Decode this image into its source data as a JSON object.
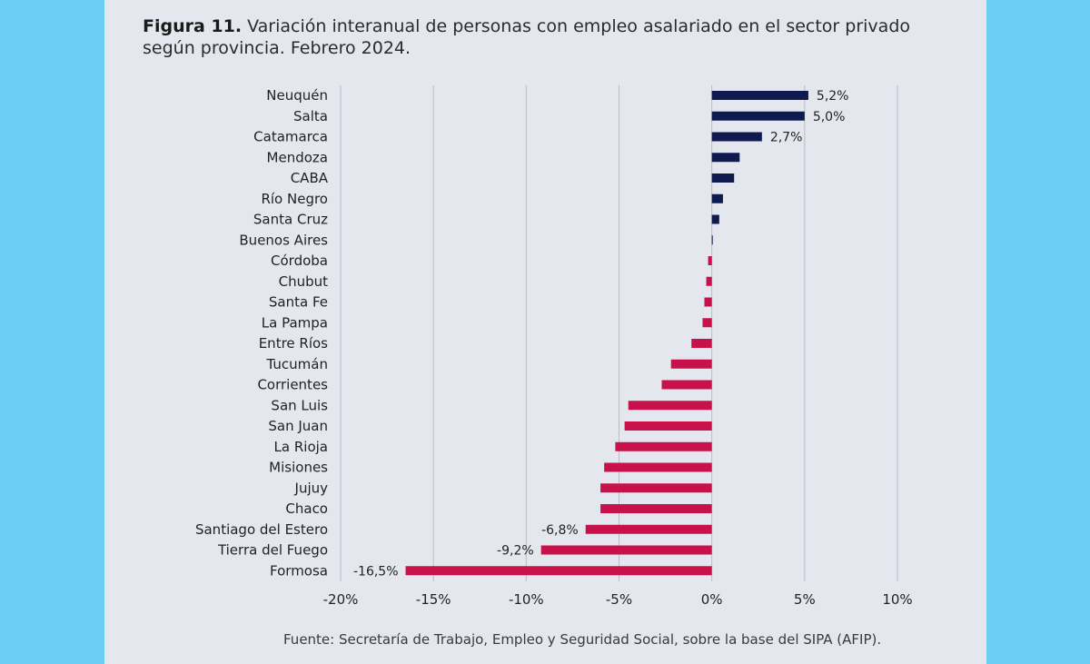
{
  "figure": {
    "label": "Figura 11.",
    "title": "Variación interanual de personas con empleo asalariado en el sector privado según provincia. Febrero 2024."
  },
  "source": "Fuente: Secretaría de Trabajo, Empleo y Seguridad Social, sobre la base del SIPA (AFIP).",
  "colors": {
    "positive": "#0f1a4f",
    "negative": "#c8104b",
    "grid": "#b9bbc4",
    "background": "#e5e7ef",
    "frame": "#6ccdf4"
  },
  "chart_data": {
    "type": "bar",
    "orientation": "horizontal",
    "categories": [
      "Neuquén",
      "Salta",
      "Catamarca",
      "Mendoza",
      "CABA",
      "Río Negro",
      "Santa Cruz",
      "Buenos Aires",
      "Córdoba",
      "Chubut",
      "Santa Fe",
      "La Pampa",
      "Entre Ríos",
      "Tucumán",
      "Corrientes",
      "San Luis",
      "San Juan",
      "La Rioja",
      "Misiones",
      "Jujuy",
      "Chaco",
      "Santiago del Estero",
      "Tierra del Fuego",
      "Formosa"
    ],
    "values": [
      5.2,
      5.0,
      2.7,
      1.5,
      1.2,
      0.6,
      0.4,
      0.05,
      -0.2,
      -0.3,
      -0.4,
      -0.5,
      -1.1,
      -2.2,
      -2.7,
      -4.5,
      -4.7,
      -5.2,
      -5.8,
      -6.0,
      -6.0,
      -6.8,
      -9.2,
      -16.5
    ],
    "data_labels": [
      "5,2%",
      "5,0%",
      "2,7%",
      "",
      "",
      "",
      "",
      "",
      "",
      "",
      "",
      "",
      "",
      "",
      "",
      "",
      "",
      "",
      "",
      "",
      "",
      "-6,8%",
      "-9,2%",
      "-16,5%"
    ],
    "xlim": [
      -20,
      10
    ],
    "xticks": [
      -20,
      -15,
      -10,
      -5,
      0,
      5,
      10
    ],
    "xtick_labels": [
      "-20%",
      "-15%",
      "-10%",
      "-5%",
      "0%",
      "5%",
      "10%"
    ],
    "grid": "vertical",
    "xlabel": "",
    "ylabel": ""
  }
}
